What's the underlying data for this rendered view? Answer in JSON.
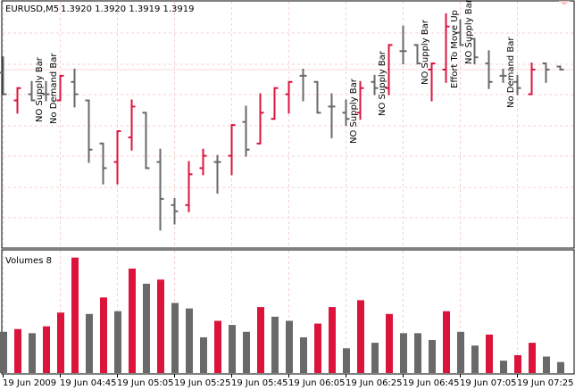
{
  "header": {
    "symbol": "EURUSD,M5",
    "ohlc": "1.3920 1.3920 1.3919 1.3919"
  },
  "volume_pane": {
    "title": "Volumes 8"
  },
  "colors": {
    "up": "#dc143c",
    "down": "#696969",
    "grid": "#f5d0d0",
    "bidline": "#f8d8d8"
  },
  "chart_data": [
    {
      "type": "ohlc-bar",
      "title": "EURUSD,M5",
      "bid": 1.3919,
      "bars": [
        {
          "o": 1.3918,
          "h": 1.3923,
          "l": 1.3911,
          "c": 1.3911,
          "color": "down"
        },
        {
          "o": 1.3909,
          "h": 1.3913,
          "l": 1.3905,
          "c": 1.3913,
          "color": "up"
        },
        {
          "o": 1.3911,
          "h": 1.3915,
          "l": 1.3909,
          "c": 1.3909,
          "color": "down"
        },
        {
          "o": 1.3911,
          "h": 1.3915,
          "l": 1.3909,
          "c": 1.3911,
          "color": "down"
        },
        {
          "o": 1.3909,
          "h": 1.3917,
          "l": 1.3909,
          "c": 1.3917,
          "color": "up"
        },
        {
          "o": 1.3915,
          "h": 1.3919,
          "l": 1.3907,
          "c": 1.3911,
          "color": "down"
        },
        {
          "o": 1.3909,
          "h": 1.3909,
          "l": 1.3889,
          "c": 1.3893,
          "color": "down"
        },
        {
          "o": 1.3895,
          "h": 1.3895,
          "l": 1.3882,
          "c": 1.3887,
          "color": "down"
        },
        {
          "o": 1.3889,
          "h": 1.3899,
          "l": 1.3882,
          "c": 1.3899,
          "color": "up"
        },
        {
          "o": 1.3897,
          "h": 1.3909,
          "l": 1.3893,
          "c": 1.3907,
          "color": "up"
        },
        {
          "o": 1.3905,
          "h": 1.3905,
          "l": 1.3887,
          "c": 1.3887,
          "color": "down"
        },
        {
          "o": 1.3889,
          "h": 1.3893,
          "l": 1.3867,
          "c": 1.3877,
          "color": "down"
        },
        {
          "o": 1.3875,
          "h": 1.3877,
          "l": 1.3869,
          "c": 1.3873,
          "color": "down"
        },
        {
          "o": 1.3875,
          "h": 1.3889,
          "l": 1.3873,
          "c": 1.3885,
          "color": "up"
        },
        {
          "o": 1.3887,
          "h": 1.3893,
          "l": 1.3885,
          "c": 1.3891,
          "color": "up"
        },
        {
          "o": 1.3889,
          "h": 1.3891,
          "l": 1.3879,
          "c": 1.3889,
          "color": "down"
        },
        {
          "o": 1.3891,
          "h": 1.3901,
          "l": 1.3885,
          "c": 1.3901,
          "color": "up"
        },
        {
          "o": 1.3902,
          "h": 1.3907,
          "l": 1.3891,
          "c": 1.3893,
          "color": "down"
        },
        {
          "o": 1.3895,
          "h": 1.3911,
          "l": 1.3895,
          "c": 1.3905,
          "color": "up"
        },
        {
          "o": 1.3903,
          "h": 1.3913,
          "l": 1.3903,
          "c": 1.3913,
          "color": "up"
        },
        {
          "o": 1.3911,
          "h": 1.3915,
          "l": 1.3905,
          "c": 1.3915,
          "color": "up"
        },
        {
          "o": 1.3917,
          "h": 1.3919,
          "l": 1.3909,
          "c": 1.3917,
          "color": "down"
        },
        {
          "o": 1.3915,
          "h": 1.3915,
          "l": 1.3905,
          "c": 1.3905,
          "color": "down"
        },
        {
          "o": 1.3907,
          "h": 1.3911,
          "l": 1.3897,
          "c": 1.3907,
          "color": "down"
        },
        {
          "o": 1.3905,
          "h": 1.3909,
          "l": 1.3901,
          "c": 1.3903,
          "color": "down"
        },
        {
          "o": 1.3905,
          "h": 1.3915,
          "l": 1.3903,
          "c": 1.3913,
          "color": "up"
        },
        {
          "o": 1.3915,
          "h": 1.3917,
          "l": 1.3911,
          "c": 1.3913,
          "color": "down"
        },
        {
          "o": 1.3913,
          "h": 1.3927,
          "l": 1.3911,
          "c": 1.3927,
          "color": "up"
        },
        {
          "o": 1.3925,
          "h": 1.3933,
          "l": 1.3921,
          "c": 1.3925,
          "color": "down"
        },
        {
          "o": 1.3927,
          "h": 1.3927,
          "l": 1.3921,
          "c": 1.3921,
          "color": "down"
        },
        {
          "o": 1.3919,
          "h": 1.3921,
          "l": 1.3909,
          "c": 1.3921,
          "color": "up"
        },
        {
          "o": 1.3919,
          "h": 1.3937,
          "l": 1.3915,
          "c": 1.3933,
          "color": "up"
        },
        {
          "o": 1.3931,
          "h": 1.3935,
          "l": 1.3927,
          "c": 1.3927,
          "color": "down"
        },
        {
          "o": 1.3929,
          "h": 1.3929,
          "l": 1.3921,
          "c": 1.3923,
          "color": "down"
        },
        {
          "o": 1.3921,
          "h": 1.3925,
          "l": 1.3913,
          "c": 1.3915,
          "color": "down"
        },
        {
          "o": 1.3917,
          "h": 1.3919,
          "l": 1.3915,
          "c": 1.3917,
          "color": "down"
        },
        {
          "o": 1.3915,
          "h": 1.3917,
          "l": 1.3911,
          "c": 1.3913,
          "color": "down"
        },
        {
          "o": 1.3911,
          "h": 1.3921,
          "l": 1.3911,
          "c": 1.3919,
          "color": "up"
        },
        {
          "o": 1.3921,
          "h": 1.3921,
          "l": 1.3915,
          "c": 1.3919,
          "color": "down"
        },
        {
          "o": 1.392,
          "h": 1.392,
          "l": 1.3919,
          "c": 1.3919,
          "color": "down"
        }
      ],
      "annotations": [
        {
          "bar": 3,
          "text": "NO Supply Bar"
        },
        {
          "bar": 4,
          "text": "No Demand Bar"
        },
        {
          "bar": 24,
          "text": "NO Supply Bar"
        },
        {
          "bar": 26,
          "text": "NO Supply Bar"
        },
        {
          "bar": 29,
          "text": "NO Supply Bar"
        },
        {
          "bar": 31,
          "text": "Effort To Move Up"
        },
        {
          "bar": 32,
          "text": "NO Supply Bar"
        },
        {
          "bar": 35,
          "text": "No Demand Bar"
        }
      ],
      "grid": true
    },
    {
      "type": "bar",
      "title": "Volumes 8",
      "values": [
        30,
        32,
        29,
        34,
        44,
        84,
        43,
        55,
        45,
        76,
        65,
        68,
        51,
        47,
        26,
        38,
        35,
        30,
        48,
        41,
        38,
        26,
        36,
        48,
        18,
        53,
        22,
        43,
        29,
        29,
        24,
        45,
        30,
        20,
        28,
        9,
        13,
        22,
        12,
        8
      ],
      "colors": [
        "down",
        "up",
        "down",
        "up",
        "up",
        "up",
        "down",
        "up",
        "down",
        "up",
        "down",
        "up",
        "down",
        "down",
        "down",
        "up",
        "down",
        "down",
        "up",
        "down",
        "down",
        "down",
        "up",
        "up",
        "down",
        "up",
        "down",
        "up",
        "down",
        "down",
        "down",
        "up",
        "down",
        "down",
        "up",
        "down",
        "up",
        "up",
        "down",
        "down"
      ],
      "x_tick_labels": [
        "19 Jun 2009",
        "19 Jun 04:45",
        "19 Jun 05:05",
        "19 Jun 05:25",
        "19 Jun 05:45",
        "19 Jun 06:05",
        "19 Jun 06:25",
        "19 Jun 06:45",
        "19 Jun 07:05",
        "19 Jun 07:25"
      ]
    }
  ]
}
